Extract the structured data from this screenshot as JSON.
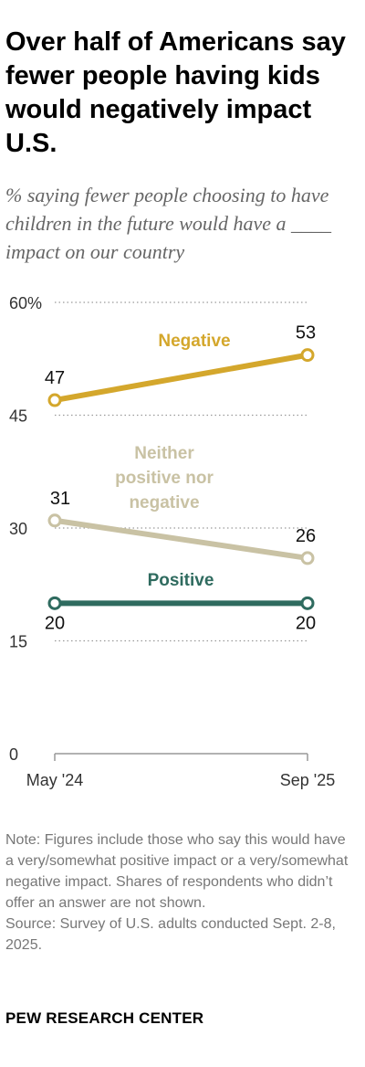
{
  "title": "Over half of Americans say fewer people having kids would negatively impact U.S.",
  "subtitle": "% saying fewer people choosing to have children in the future would have a ____ impact on our country",
  "chart_data": {
    "type": "line",
    "x": [
      "May '24",
      "Sep '25"
    ],
    "series": [
      {
        "name": "Negative",
        "values": [
          47,
          53
        ],
        "color": "#d4a72c"
      },
      {
        "name": "Neither positive nor negative",
        "values": [
          31,
          26
        ],
        "color": "#c9c2a4"
      },
      {
        "name": "Positive",
        "values": [
          20,
          20
        ],
        "color": "#2f6b5f"
      }
    ],
    "ylim": [
      0,
      60
    ],
    "yticks": [
      "0",
      "15",
      "30",
      "45",
      "60%"
    ],
    "grid": true,
    "data_labels": true
  },
  "note": "Note: Figures include those who say this would have a very/somewhat positive impact or a very/somewhat negative impact. Shares of respondents who didn’t offer an answer are not shown.",
  "source": "Source: Survey of U.S. adults conducted Sept. 2-8, 2025.",
  "brand": "PEW RESEARCH CENTER"
}
